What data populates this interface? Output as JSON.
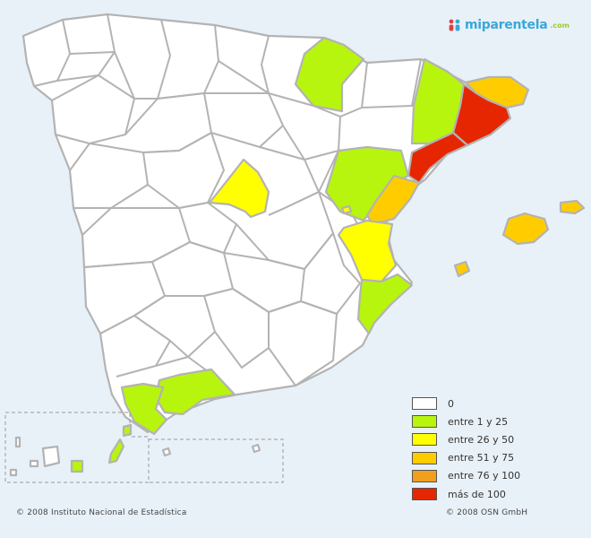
{
  "brand": {
    "logo_text": "miparentela",
    "logo_suffix": ".com"
  },
  "legend": {
    "items": [
      {
        "label": "0",
        "color": "#ffffff"
      },
      {
        "label": "entre 1 y 25",
        "color": "#b7f50f"
      },
      {
        "label": "entre 26 y 50",
        "color": "#ffff00"
      },
      {
        "label": "entre 51 y 75",
        "color": "#ffcc00"
      },
      {
        "label": "entre 76 y 100",
        "color": "#f09f1e"
      },
      {
        "label": "más de 100",
        "color": "#e62600"
      }
    ]
  },
  "colors": {
    "empty": "#ffffff",
    "border": "#b3b3b3",
    "background": "#e9f1f8"
  },
  "footer": {
    "left": "© 2008 Instituto Nacional de Estadística",
    "right": "© 2008 OSN GmbH"
  }
}
